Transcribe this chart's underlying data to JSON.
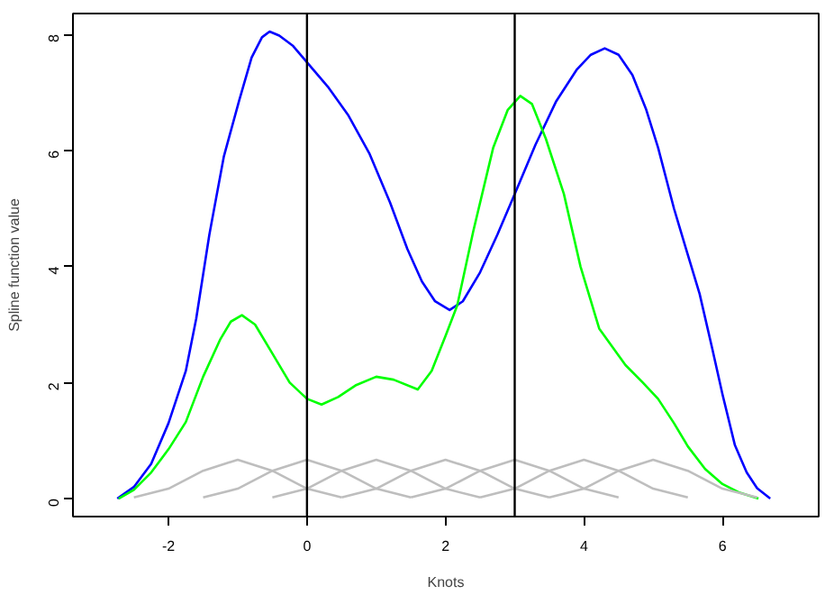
{
  "chart_data": {
    "type": "line",
    "xlabel": "Knots",
    "ylabel": "Spline function value",
    "xlim": [
      -3.38,
      7.39
    ],
    "ylim": [
      -0.31,
      8.36
    ],
    "xticks": [
      -2,
      0,
      2,
      4,
      6
    ],
    "yticks": [
      0,
      2,
      4,
      6,
      8
    ],
    "grid": false,
    "marker": "none",
    "line_style": "solid",
    "series": [
      {
        "color": "#0000ff",
        "x": [
          -2.74,
          -2.5,
          -2.25,
          -2.0,
          -1.75,
          -1.6,
          -1.41,
          -1.2,
          -0.98,
          -0.8,
          -0.65,
          -0.54,
          -0.4,
          -0.2,
          0,
          0.3,
          0.6,
          0.9,
          1.2,
          1.45,
          1.66,
          1.85,
          2.06,
          2.25,
          2.5,
          2.75,
          3,
          3.3,
          3.6,
          3.9,
          4.1,
          4.3,
          4.5,
          4.7,
          4.9,
          5.07,
          5.3,
          5.5,
          5.67,
          5.85,
          6.0,
          6.18,
          6.35,
          6.5,
          6.69
        ],
        "values": [
          0,
          0.2,
          0.6,
          1.3,
          2.2,
          3.1,
          4.55,
          5.9,
          6.86,
          7.6,
          7.95,
          8.05,
          7.98,
          7.8,
          7.52,
          7.1,
          6.6,
          5.95,
          5.1,
          4.3,
          3.74,
          3.4,
          3.25,
          3.4,
          3.9,
          4.55,
          5.25,
          6.1,
          6.85,
          7.4,
          7.65,
          7.76,
          7.65,
          7.3,
          6.7,
          6.05,
          5.0,
          4.2,
          3.53,
          2.6,
          1.8,
          0.92,
          0.45,
          0.18,
          0
        ]
      },
      {
        "color": "#00ff00",
        "x": [
          -2.72,
          -2.5,
          -2.25,
          -2,
          -1.75,
          -1.5,
          -1.25,
          -1.1,
          -0.94,
          -0.75,
          -0.5,
          -0.25,
          0,
          0.21,
          0.45,
          0.7,
          1.0,
          1.25,
          1.6,
          1.8,
          2.0,
          2.17,
          2.4,
          2.69,
          2.9,
          3.08,
          3.25,
          3.45,
          3.71,
          3.95,
          4.22,
          4.6,
          4.85,
          5.07,
          5.3,
          5.5,
          5.75,
          6.0,
          6.25,
          6.52
        ],
        "values": [
          0,
          0.15,
          0.45,
          0.85,
          1.32,
          2.1,
          2.75,
          3.05,
          3.16,
          3.0,
          2.5,
          2.0,
          1.72,
          1.62,
          1.75,
          1.95,
          2.1,
          2.05,
          1.88,
          2.2,
          2.8,
          3.33,
          4.6,
          6.05,
          6.7,
          6.94,
          6.8,
          6.2,
          5.25,
          4.0,
          2.93,
          2.3,
          2.0,
          1.72,
          1.3,
          0.9,
          0.51,
          0.25,
          0.1,
          0
        ]
      },
      {
        "color": "#bebebe",
        "x": [
          -2.5,
          -2,
          -1.5,
          -1,
          -0.5,
          0,
          0.5
        ],
        "values": [
          0.02,
          0.17,
          0.48,
          0.67,
          0.48,
          0.17,
          0.02
        ]
      },
      {
        "color": "#bebebe",
        "x": [
          -1.5,
          -1,
          -0.5,
          0,
          0.5,
          1,
          1.5
        ],
        "values": [
          0.02,
          0.17,
          0.48,
          0.67,
          0.48,
          0.17,
          0.02
        ]
      },
      {
        "color": "#bebebe",
        "x": [
          -0.5,
          0,
          0.5,
          1,
          1.5,
          2,
          2.5
        ],
        "values": [
          0.02,
          0.17,
          0.48,
          0.67,
          0.48,
          0.17,
          0.02
        ]
      },
      {
        "color": "#bebebe",
        "x": [
          0.5,
          1,
          1.5,
          2,
          2.5,
          3,
          3.5
        ],
        "values": [
          0.02,
          0.17,
          0.48,
          0.67,
          0.48,
          0.17,
          0.02
        ]
      },
      {
        "color": "#bebebe",
        "x": [
          1.5,
          2,
          2.5,
          3,
          3.5,
          4,
          4.5
        ],
        "values": [
          0.02,
          0.17,
          0.48,
          0.67,
          0.48,
          0.17,
          0.02
        ]
      },
      {
        "color": "#bebebe",
        "x": [
          2.5,
          3,
          3.5,
          4,
          4.5,
          5,
          5.5
        ],
        "values": [
          0.02,
          0.17,
          0.48,
          0.67,
          0.48,
          0.17,
          0.02
        ]
      },
      {
        "color": "#bebebe",
        "x": [
          3.5,
          4,
          4.5,
          5,
          5.5,
          6,
          6.5
        ],
        "values": [
          0.02,
          0.17,
          0.48,
          0.67,
          0.48,
          0.17,
          0.02
        ]
      }
    ],
    "ref_lines": [
      {
        "axis": "x",
        "value": 0,
        "color": "#000000"
      },
      {
        "axis": "x",
        "value": 3,
        "color": "#000000"
      }
    ]
  }
}
